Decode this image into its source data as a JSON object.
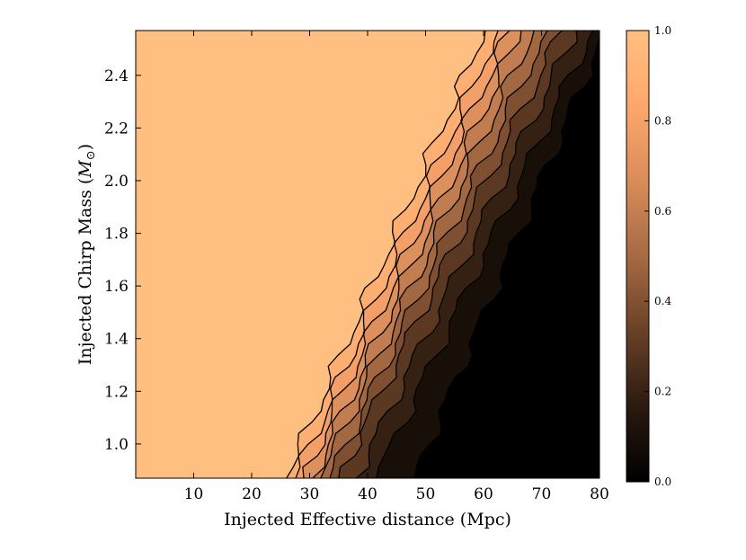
{
  "chart_data": {
    "type": "heatmap",
    "title": "",
    "xlabel": "Injected Effective distance (Mpc)",
    "ylabel_main": "Injected Chirp Mass (",
    "ylabel_symbol": "M",
    "ylabel_sub": "⊙",
    "ylabel_close": ")",
    "xlim": [
      0,
      80
    ],
    "ylim": [
      0.87,
      2.57
    ],
    "xticks": [
      "10",
      "20",
      "30",
      "40",
      "50",
      "60",
      "70",
      "80"
    ],
    "yticks": [
      "1.0",
      "1.2",
      "1.4",
      "1.6",
      "1.8",
      "2.0",
      "2.2",
      "2.4"
    ],
    "colorbar": {
      "ticks": [
        "0.0",
        "0.2",
        "0.4",
        "0.6",
        "0.8",
        "1.0"
      ],
      "range": [
        0,
        1
      ]
    },
    "contour_levels": [
      0.1,
      0.2,
      0.3,
      0.4,
      0.5,
      0.6,
      0.7,
      0.8,
      0.9,
      0.95
    ],
    "contours_at_bottom_x": [
      26,
      27.6,
      29,
      30.5,
      31.9,
      33.5,
      35,
      38,
      41.5,
      48
    ],
    "contours_at_top_x": [
      60.3,
      62.5,
      64.5,
      66.5,
      68.7,
      71,
      73.5,
      76,
      78.8,
      81
    ],
    "colormap": [
      "#000000",
      "#2a1a10",
      "#6a4127",
      "#a66a44",
      "#d98c5a",
      "#ffa76c",
      "#ffbf80"
    ],
    "plateau_color": "#ffbf80"
  }
}
